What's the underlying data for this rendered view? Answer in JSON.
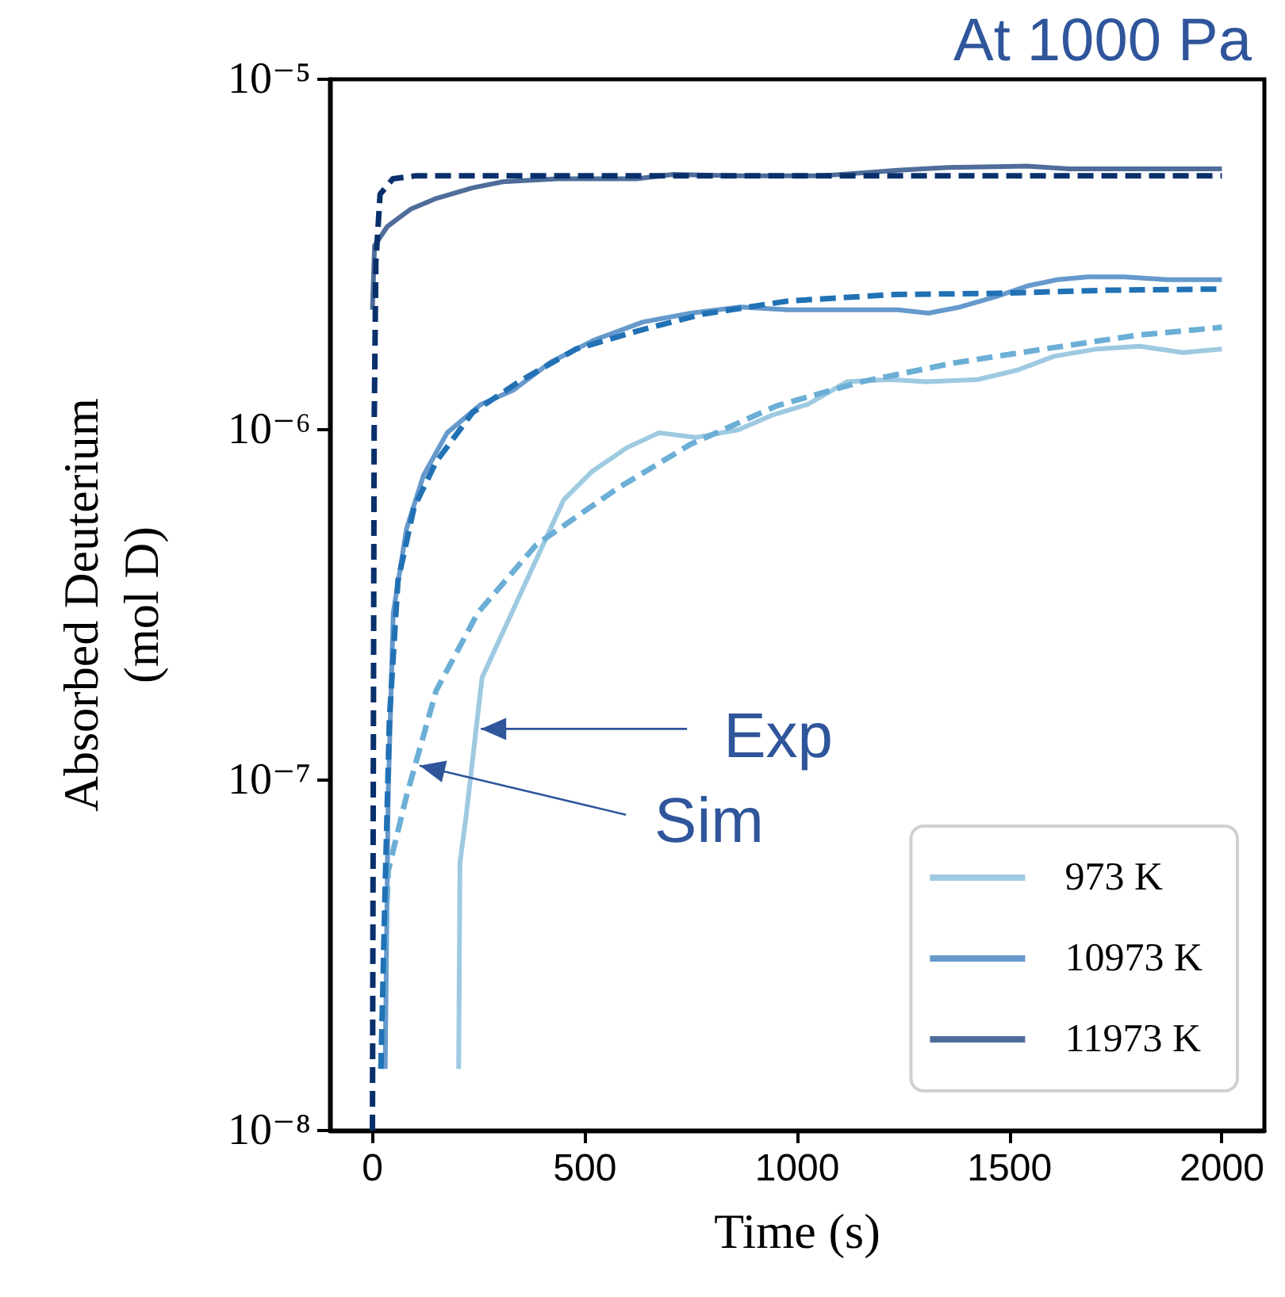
{
  "chart_data": {
    "type": "line",
    "title": "At 1000 Pa",
    "xlabel": "Time (s)",
    "ylabel": "Absorbed Deuterium\n(mol D)",
    "log": "y",
    "xlim": [
      -100,
      2100
    ],
    "xticks": [
      0,
      500,
      1000,
      1500,
      2000
    ],
    "ylim": [
      1e-08,
      1e-05
    ],
    "yticks": [
      {
        "value": 1e-08,
        "label": "10⁻⁸"
      },
      {
        "value": 1e-07,
        "label": "10⁻⁷"
      },
      {
        "value": 1e-06,
        "label": "10⁻⁶"
      },
      {
        "value": 1e-05,
        "label": "10⁻⁵"
      }
    ],
    "grid": false,
    "legend": "bottom right",
    "marker": "none",
    "series": [
      {
        "name": "973 K",
        "color": "#9ecae1",
        "line_style": "solid",
        "x": [
          203,
          206,
          220,
          258,
          450,
          517,
          600,
          675,
          761,
          862,
          941,
          1024,
          1117,
          1219,
          1305,
          1425,
          1519,
          1605,
          1706,
          1807,
          1909,
          2000
        ],
        "values": [
          1.5e-08,
          5.8e-08,
          7.8e-08,
          1.96e-07,
          6.3e-07,
          7.6e-07,
          8.9e-07,
          9.8e-07,
          9.5e-07,
          1e-06,
          1.1e-06,
          1.18e-06,
          1.37e-06,
          1.39e-06,
          1.37e-06,
          1.39e-06,
          1.48e-06,
          1.62e-06,
          1.7e-06,
          1.73e-06,
          1.66e-06,
          1.7e-06
        ]
      },
      {
        "name": "10973 K",
        "color": "#6699cc",
        "line_style": "solid",
        "x": [
          30,
          37,
          49,
          80,
          120,
          176,
          255,
          333,
          420,
          521,
          637,
          750,
          866,
          978,
          1237,
          1309,
          1384,
          1470,
          1541,
          1613,
          1684,
          1770,
          1870,
          2000
        ],
        "values": [
          1.5e-08,
          9e-08,
          3e-07,
          5.2e-07,
          7.4e-07,
          9.8e-07,
          1.18e-06,
          1.3e-06,
          1.56e-06,
          1.8e-06,
          2.03e-06,
          2.15e-06,
          2.24e-06,
          2.2e-06,
          2.2e-06,
          2.15e-06,
          2.24e-06,
          2.4e-06,
          2.57e-06,
          2.68e-06,
          2.73e-06,
          2.73e-06,
          2.68e-06,
          2.68e-06
        ]
      },
      {
        "name": "11973 K",
        "color": "#4f6d9a",
        "line_style": "solid",
        "x": [
          0,
          5,
          35,
          90,
          150,
          236,
          307,
          436,
          622,
          708,
          860,
          1055,
          1237,
          1355,
          1540,
          1640,
          2000
        ],
        "values": [
          2.2e-06,
          3.35e-06,
          3.8e-06,
          4.26e-06,
          4.57e-06,
          4.9e-06,
          5.1e-06,
          5.2e-06,
          5.2e-06,
          5.35e-06,
          5.3e-06,
          5.3e-06,
          5.5e-06,
          5.6e-06,
          5.65e-06,
          5.55e-06,
          5.55e-06
        ]
      },
      {
        "color": "#6baed6",
        "line_style": "dashed",
        "x": [
          20,
          37,
          80,
          150,
          248,
          386,
          577,
          750,
          952,
          1151,
          1369,
          1582,
          1800,
          2000
        ],
        "values": [
          1.5e-08,
          5.5e-08,
          9e-08,
          1.8e-07,
          3e-07,
          4.7e-07,
          6.8e-07,
          9.1e-07,
          1.17e-06,
          1.37e-06,
          1.55e-06,
          1.7e-06,
          1.86e-06,
          1.96e-06
        ]
      },
      {
        "color": "#2171b5",
        "line_style": "dashed",
        "x": [
          20,
          30,
          40,
          60,
          98,
          150,
          236,
          349,
          480,
          622,
          780,
          979,
          1226,
          1470,
          1729,
          2000
        ],
        "values": [
          1.5e-08,
          5e-08,
          1.5e-07,
          3.7e-07,
          6e-07,
          8.1e-07,
          1.12e-06,
          1.38e-06,
          1.7e-06,
          1.91e-06,
          2.14e-06,
          2.33e-06,
          2.43e-06,
          2.45e-06,
          2.5e-06,
          2.52e-06
        ]
      },
      {
        "color": "#08306b",
        "line_style": "dashed",
        "x": [
          0,
          2,
          4,
          8,
          18,
          48,
          100,
          500,
          1000,
          1500,
          2000
        ],
        "values": [
          1e-08,
          1e-07,
          1e-06,
          3e-06,
          4.7e-06,
          5.2e-06,
          5.3e-06,
          5.3e-06,
          5.3e-06,
          5.3e-06,
          5.3e-06
        ]
      }
    ],
    "annotations": [
      {
        "text": "Exp",
        "x": 244,
        "y": 1.4e-07
      },
      {
        "text": "Sim",
        "x": 100,
        "y": 1.1e-07
      }
    ]
  }
}
